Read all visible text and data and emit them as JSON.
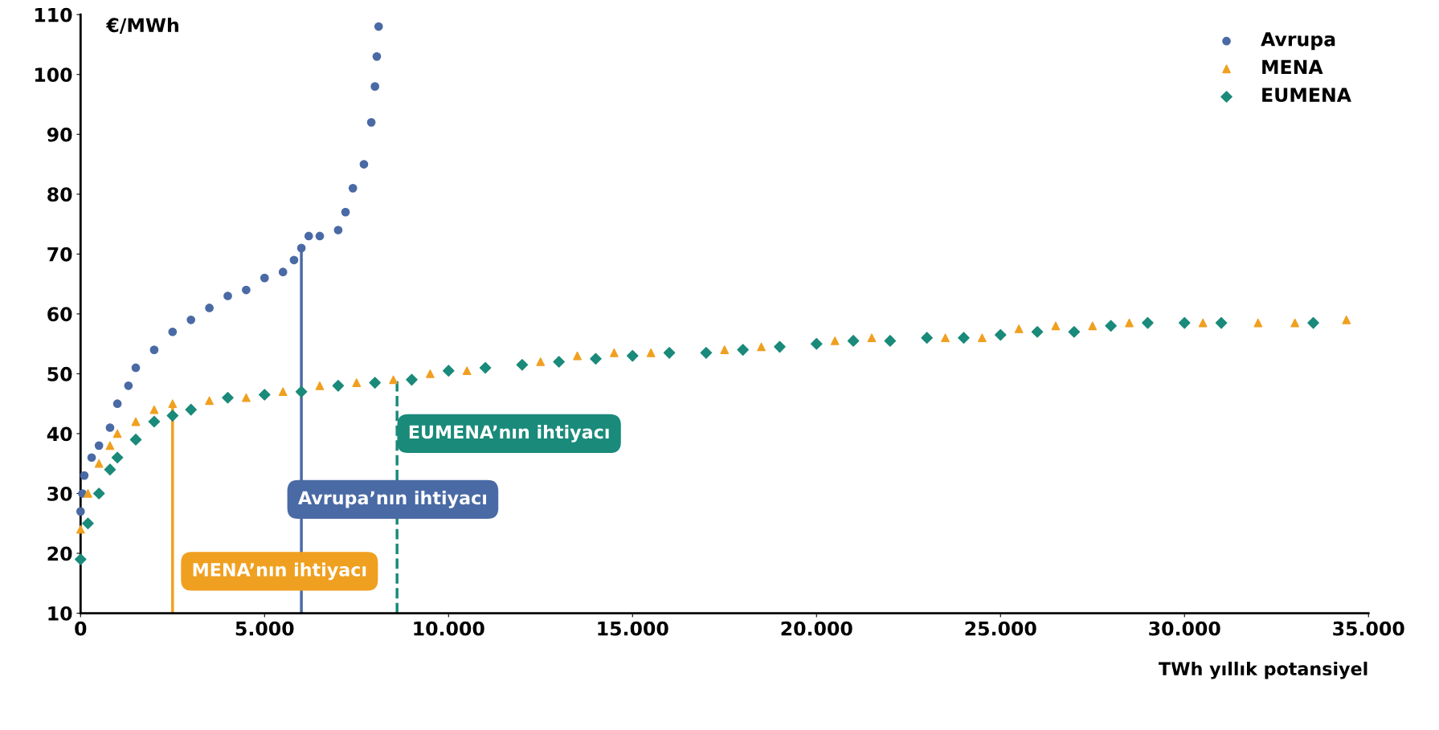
{
  "chart_data": {
    "type": "scatter",
    "ylabel": "€/MWh",
    "xlabel": "TWh yıllık potansiyel",
    "xlim": [
      0,
      35000
    ],
    "ylim": [
      10,
      110
    ],
    "xticks": [
      0,
      {
        "value": 5000,
        "label": "5.000"
      },
      {
        "value": 10000,
        "label": "10.000"
      },
      {
        "value": 15000,
        "label": "15.000"
      },
      {
        "value": 20000,
        "label": "20.000"
      },
      {
        "value": 25000,
        "label": "25.000"
      },
      {
        "value": 30000,
        "label": "30.000"
      },
      {
        "value": 35000,
        "label": "35.000"
      }
    ],
    "yticks": [
      10,
      20,
      30,
      40,
      50,
      60,
      70,
      80,
      90,
      100,
      110
    ],
    "grid": false,
    "legend": "top right",
    "series": [
      {
        "name": "Avrupa",
        "color": "#4a6aa5",
        "marker": "circle",
        "x": [
          0,
          50,
          100,
          300,
          500,
          800,
          1000,
          1300,
          1500,
          2000,
          2500,
          3000,
          3500,
          4000,
          4500,
          5000,
          5500,
          5800,
          6000,
          6200,
          6500,
          7000,
          7200,
          7400,
          7700,
          7900,
          8000,
          8050,
          8100
        ],
        "values": [
          27,
          30,
          33,
          36,
          38,
          41,
          45,
          48,
          51,
          54,
          57,
          59,
          61,
          63,
          64,
          66,
          67,
          69,
          71,
          73,
          73,
          74,
          77,
          81,
          85,
          92,
          98,
          103,
          108
        ]
      },
      {
        "name": "MENA",
        "color": "#f0a020",
        "marker": "triangle",
        "x": [
          0,
          200,
          500,
          800,
          1000,
          1500,
          2000,
          2500,
          3500,
          4500,
          5500,
          6500,
          7500,
          8500,
          9500,
          10500,
          12500,
          13500,
          14500,
          15500,
          17500,
          18500,
          20500,
          21500,
          23500,
          24500,
          25500,
          26500,
          27500,
          28500,
          30500,
          32000,
          33000,
          34400
        ],
        "values": [
          24,
          30,
          35,
          38,
          40,
          42,
          44,
          45,
          45.5,
          46,
          47,
          48,
          48.5,
          49,
          50,
          50.5,
          52,
          53,
          53.5,
          53.5,
          54,
          54.5,
          55.5,
          56,
          56,
          56,
          57.5,
          58,
          58,
          58.5,
          58.5,
          58.5,
          58.5,
          59
        ]
      },
      {
        "name": "EUMENA",
        "color": "#1a8a7a",
        "marker": "diamond",
        "x": [
          0,
          200,
          500,
          800,
          1000,
          1500,
          2000,
          2500,
          3000,
          4000,
          5000,
          6000,
          7000,
          8000,
          9000,
          10000,
          11000,
          12000,
          13000,
          14000,
          15000,
          16000,
          17000,
          18000,
          19000,
          20000,
          21000,
          22000,
          23000,
          24000,
          25000,
          26000,
          27000,
          28000,
          29000,
          30000,
          31000,
          33500
        ],
        "values": [
          19,
          25,
          30,
          34,
          36,
          39,
          42,
          43,
          44,
          46,
          46.5,
          47,
          48,
          48.5,
          49,
          50.5,
          51,
          51.5,
          52,
          52.5,
          53,
          53.5,
          53.5,
          54,
          54.5,
          55,
          55.5,
          55.5,
          56,
          56,
          56.5,
          57,
          57,
          58,
          58.5,
          58.5,
          58.5,
          58.5
        ]
      }
    ],
    "ref_lines": [
      {
        "axis": "x",
        "value": 2500,
        "label": "MENA’nın ihtiyacı",
        "color": "#f0a020",
        "line_style": "solid"
      },
      {
        "axis": "x",
        "value": 6000,
        "label": "Avrupa’nın ihtiyacı",
        "color": "#4a6aa5",
        "line_style": "solid"
      },
      {
        "axis": "x",
        "value": 8600,
        "label": "EUMENA’nın ihtiyacı",
        "color": "#1a8a7a",
        "line_style": "dashed"
      }
    ]
  }
}
